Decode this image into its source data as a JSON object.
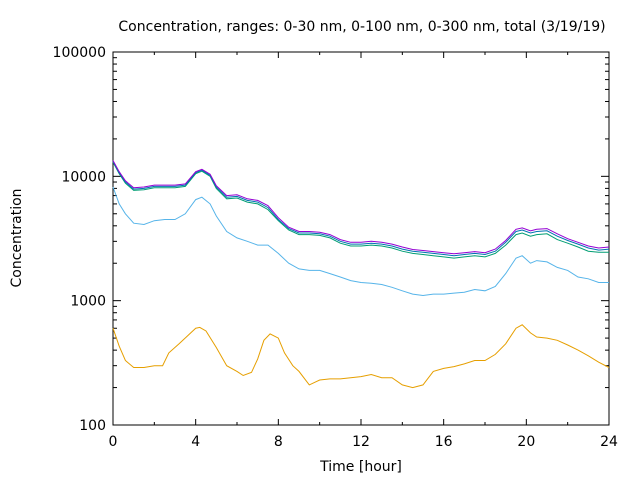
{
  "chart_data": {
    "type": "line",
    "title": "Concentration, ranges: 0-30 nm, 0-100 nm, 0-300 nm, total (3/19/19)",
    "xlabel": "Time [hour]",
    "ylabel": "Concentration",
    "xlim": [
      0,
      24
    ],
    "ylim": [
      100,
      100000
    ],
    "yscale": "log",
    "grid": false,
    "legend": "none",
    "x_ticks": [
      0,
      4,
      8,
      12,
      16,
      20,
      24
    ],
    "x_tick_labels": [
      "0",
      "4",
      "8",
      "12",
      "16",
      "20",
      "24"
    ],
    "y_ticks": [
      100,
      1000,
      10000,
      100000
    ],
    "y_tick_labels": [
      "100",
      "1000",
      "10000",
      "100000"
    ],
    "series": [
      {
        "color": "#e69f00",
        "points": [
          [
            0,
            600
          ],
          [
            0.3,
            430
          ],
          [
            0.6,
            330
          ],
          [
            1,
            290
          ],
          [
            1.5,
            290
          ],
          [
            2,
            300
          ],
          [
            2.4,
            300
          ],
          [
            2.7,
            380
          ],
          [
            3.2,
            450
          ],
          [
            3.6,
            520
          ],
          [
            4,
            600
          ],
          [
            4.2,
            610
          ],
          [
            4.5,
            570
          ],
          [
            5,
            420
          ],
          [
            5.5,
            300
          ],
          [
            6,
            270
          ],
          [
            6.3,
            250
          ],
          [
            6.7,
            265
          ],
          [
            7,
            340
          ],
          [
            7.3,
            480
          ],
          [
            7.6,
            540
          ],
          [
            8,
            500
          ],
          [
            8.3,
            380
          ],
          [
            8.7,
            300
          ],
          [
            9,
            270
          ],
          [
            9.5,
            210
          ],
          [
            10,
            230
          ],
          [
            10.5,
            235
          ],
          [
            11,
            235
          ],
          [
            12,
            245
          ],
          [
            12.5,
            255
          ],
          [
            13,
            240
          ],
          [
            13.5,
            240
          ],
          [
            14,
            210
          ],
          [
            14.5,
            200
          ],
          [
            15,
            210
          ],
          [
            15.5,
            270
          ],
          [
            16,
            285
          ],
          [
            16.5,
            295
          ],
          [
            17,
            310
          ],
          [
            17.5,
            330
          ],
          [
            18,
            330
          ],
          [
            18.5,
            370
          ],
          [
            19,
            450
          ],
          [
            19.5,
            600
          ],
          [
            19.8,
            640
          ],
          [
            20.2,
            550
          ],
          [
            20.5,
            510
          ],
          [
            21,
            500
          ],
          [
            21.5,
            480
          ],
          [
            22,
            440
          ],
          [
            22.5,
            400
          ],
          [
            23,
            360
          ],
          [
            23.5,
            320
          ],
          [
            24,
            290
          ]
        ]
      },
      {
        "color": "#56b4e9",
        "points": [
          [
            0,
            8200
          ],
          [
            0.3,
            6000
          ],
          [
            0.6,
            5000
          ],
          [
            1,
            4200
          ],
          [
            1.5,
            4100
          ],
          [
            2,
            4400
          ],
          [
            2.5,
            4500
          ],
          [
            3,
            4500
          ],
          [
            3.5,
            5000
          ],
          [
            4,
            6500
          ],
          [
            4.3,
            6800
          ],
          [
            4.7,
            6000
          ],
          [
            5,
            4800
          ],
          [
            5.5,
            3600
          ],
          [
            6,
            3200
          ],
          [
            6.5,
            3000
          ],
          [
            7,
            2800
          ],
          [
            7.5,
            2800
          ],
          [
            8,
            2400
          ],
          [
            8.5,
            2000
          ],
          [
            9,
            1800
          ],
          [
            9.5,
            1750
          ],
          [
            10,
            1750
          ],
          [
            10.5,
            1650
          ],
          [
            11,
            1550
          ],
          [
            11.5,
            1450
          ],
          [
            12,
            1400
          ],
          [
            12.5,
            1380
          ],
          [
            13,
            1350
          ],
          [
            13.5,
            1280
          ],
          [
            14,
            1200
          ],
          [
            14.5,
            1130
          ],
          [
            15,
            1100
          ],
          [
            15.5,
            1130
          ],
          [
            16,
            1130
          ],
          [
            16.5,
            1150
          ],
          [
            17,
            1170
          ],
          [
            17.5,
            1230
          ],
          [
            18,
            1200
          ],
          [
            18.5,
            1300
          ],
          [
            19,
            1650
          ],
          [
            19.5,
            2200
          ],
          [
            19.8,
            2300
          ],
          [
            20.2,
            2000
          ],
          [
            20.5,
            2100
          ],
          [
            21,
            2050
          ],
          [
            21.5,
            1850
          ],
          [
            22,
            1750
          ],
          [
            22.5,
            1550
          ],
          [
            23,
            1500
          ],
          [
            23.5,
            1400
          ],
          [
            24,
            1400
          ]
        ]
      },
      {
        "color": "#009e73",
        "points": [
          [
            0,
            13000
          ],
          [
            0.3,
            10500
          ],
          [
            0.6,
            8800
          ],
          [
            1,
            7700
          ],
          [
            1.5,
            7800
          ],
          [
            2,
            8100
          ],
          [
            2.5,
            8100
          ],
          [
            3,
            8100
          ],
          [
            3.5,
            8300
          ],
          [
            4,
            10500
          ],
          [
            4.3,
            11000
          ],
          [
            4.7,
            10000
          ],
          [
            5,
            8000
          ],
          [
            5.5,
            6600
          ],
          [
            6,
            6700
          ],
          [
            6.5,
            6200
          ],
          [
            7,
            6000
          ],
          [
            7.5,
            5400
          ],
          [
            8,
            4400
          ],
          [
            8.5,
            3700
          ],
          [
            9,
            3400
          ],
          [
            9.5,
            3400
          ],
          [
            10,
            3350
          ],
          [
            10.5,
            3200
          ],
          [
            11,
            2900
          ],
          [
            11.5,
            2750
          ],
          [
            12,
            2750
          ],
          [
            12.5,
            2800
          ],
          [
            13,
            2750
          ],
          [
            13.5,
            2650
          ],
          [
            14,
            2500
          ],
          [
            14.5,
            2400
          ],
          [
            15,
            2350
          ],
          [
            15.5,
            2300
          ],
          [
            16,
            2250
          ],
          [
            16.5,
            2200
          ],
          [
            17,
            2250
          ],
          [
            17.5,
            2300
          ],
          [
            18,
            2250
          ],
          [
            18.5,
            2400
          ],
          [
            19,
            2800
          ],
          [
            19.5,
            3400
          ],
          [
            19.8,
            3500
          ],
          [
            20.2,
            3300
          ],
          [
            20.5,
            3400
          ],
          [
            21,
            3450
          ],
          [
            21.5,
            3100
          ],
          [
            22,
            2900
          ],
          [
            22.5,
            2700
          ],
          [
            23,
            2500
          ],
          [
            23.5,
            2450
          ],
          [
            24,
            2450
          ]
        ]
      },
      {
        "color": "#0072b2",
        "points": [
          [
            0,
            13200
          ],
          [
            0.3,
            10700
          ],
          [
            0.6,
            9000
          ],
          [
            1,
            7900
          ],
          [
            1.5,
            8000
          ],
          [
            2,
            8300
          ],
          [
            2.5,
            8300
          ],
          [
            3,
            8300
          ],
          [
            3.5,
            8500
          ],
          [
            4,
            10700
          ],
          [
            4.3,
            11200
          ],
          [
            4.7,
            10200
          ],
          [
            5,
            8200
          ],
          [
            5.5,
            6800
          ],
          [
            6,
            6900
          ],
          [
            6.5,
            6400
          ],
          [
            7,
            6200
          ],
          [
            7.5,
            5600
          ],
          [
            8,
            4500
          ],
          [
            8.5,
            3800
          ],
          [
            9,
            3500
          ],
          [
            9.5,
            3500
          ],
          [
            10,
            3450
          ],
          [
            10.5,
            3300
          ],
          [
            11,
            3000
          ],
          [
            11.5,
            2850
          ],
          [
            12,
            2850
          ],
          [
            12.5,
            2900
          ],
          [
            13,
            2850
          ],
          [
            13.5,
            2750
          ],
          [
            14,
            2600
          ],
          [
            14.5,
            2500
          ],
          [
            15,
            2450
          ],
          [
            15.5,
            2400
          ],
          [
            16,
            2350
          ],
          [
            16.5,
            2300
          ],
          [
            17,
            2350
          ],
          [
            17.5,
            2400
          ],
          [
            18,
            2350
          ],
          [
            18.5,
            2500
          ],
          [
            19,
            2950
          ],
          [
            19.5,
            3600
          ],
          [
            19.8,
            3700
          ],
          [
            20.2,
            3500
          ],
          [
            20.5,
            3600
          ],
          [
            21,
            3650
          ],
          [
            21.5,
            3300
          ],
          [
            22,
            3050
          ],
          [
            22.5,
            2850
          ],
          [
            23,
            2650
          ],
          [
            23.5,
            2550
          ],
          [
            24,
            2600
          ]
        ]
      },
      {
        "color": "#9400d3",
        "points": [
          [
            0,
            13400
          ],
          [
            0.3,
            10900
          ],
          [
            0.6,
            9200
          ],
          [
            1,
            8100
          ],
          [
            1.5,
            8200
          ],
          [
            2,
            8500
          ],
          [
            2.5,
            8500
          ],
          [
            3,
            8500
          ],
          [
            3.5,
            8700
          ],
          [
            4,
            10900
          ],
          [
            4.3,
            11400
          ],
          [
            4.7,
            10400
          ],
          [
            5,
            8400
          ],
          [
            5.5,
            7000
          ],
          [
            6,
            7100
          ],
          [
            6.5,
            6600
          ],
          [
            7,
            6400
          ],
          [
            7.5,
            5800
          ],
          [
            8,
            4650
          ],
          [
            8.5,
            3900
          ],
          [
            9,
            3600
          ],
          [
            9.5,
            3600
          ],
          [
            10,
            3550
          ],
          [
            10.5,
            3400
          ],
          [
            11,
            3100
          ],
          [
            11.5,
            2950
          ],
          [
            12,
            2950
          ],
          [
            12.5,
            3000
          ],
          [
            13,
            2950
          ],
          [
            13.5,
            2850
          ],
          [
            14,
            2700
          ],
          [
            14.5,
            2580
          ],
          [
            15,
            2530
          ],
          [
            15.5,
            2480
          ],
          [
            16,
            2430
          ],
          [
            16.5,
            2380
          ],
          [
            17,
            2430
          ],
          [
            17.5,
            2480
          ],
          [
            18,
            2430
          ],
          [
            18.5,
            2600
          ],
          [
            19,
            3050
          ],
          [
            19.5,
            3750
          ],
          [
            19.8,
            3850
          ],
          [
            20.2,
            3650
          ],
          [
            20.5,
            3750
          ],
          [
            21,
            3800
          ],
          [
            21.5,
            3450
          ],
          [
            22,
            3150
          ],
          [
            22.5,
            2950
          ],
          [
            23,
            2750
          ],
          [
            23.5,
            2650
          ],
          [
            24,
            2700
          ]
        ]
      }
    ]
  }
}
